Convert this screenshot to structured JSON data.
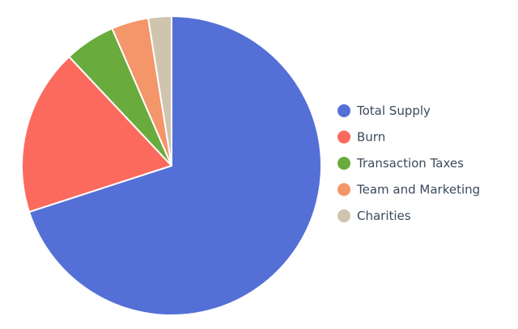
{
  "chart_data": {
    "type": "pie",
    "title": "",
    "categories": [
      "Total Supply",
      "Burn",
      "Transaction Taxes",
      "Team and Marketing",
      "Charities"
    ],
    "values": [
      70,
      18,
      5.5,
      4,
      2.5
    ],
    "unit": "%",
    "colors": [
      "#5470d6",
      "#fc6a5e",
      "#6aab3d",
      "#f4956a",
      "#cfc4ae"
    ],
    "start_angle_deg": 0,
    "direction": "clockwise",
    "legend": {
      "position": "right",
      "marker": "circle"
    }
  }
}
